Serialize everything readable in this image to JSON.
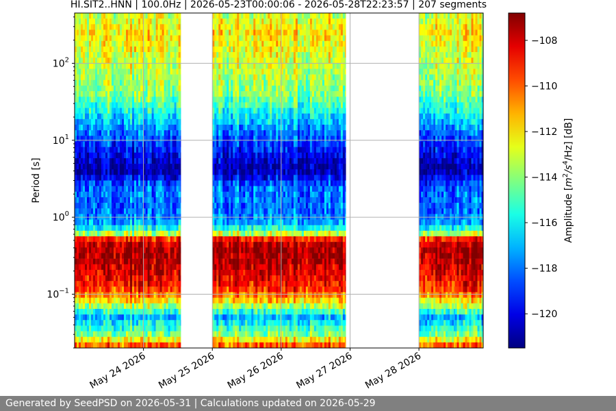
{
  "chart_data": {
    "type": "heatmap",
    "title": "HI.SIT2..HNN | 100.0Hz | 2026-05-23T00:00:06 - 2026-05-28T22:23:57 | 207 segments",
    "ylabel": "Period [s]",
    "y_scale": "log",
    "y_inverted": true,
    "ylim": [
      0.02,
      450
    ],
    "y_ticks": [
      {
        "value": 0.1,
        "base": "10",
        "exp": "−1"
      },
      {
        "value": 1,
        "base": "10",
        "exp": "0"
      },
      {
        "value": 10,
        "base": "10",
        "exp": "1"
      },
      {
        "value": 100,
        "base": "10",
        "exp": "2"
      }
    ],
    "xlim": [
      "2026-05-23T00:00:06",
      "2026-05-28T22:23:57"
    ],
    "x_ticks": [
      "May 24 2026",
      "May 25 2026",
      "May 26 2026",
      "May 27 2026",
      "May 28 2026"
    ],
    "x_tick_dates": [
      "2026-05-24",
      "2026-05-25",
      "2026-05-26",
      "2026-05-27",
      "2026-05-28"
    ],
    "grid": true,
    "colorscale": "jet",
    "colorbar": {
      "label_prefix": "Amplitude [",
      "label_unit": "m",
      "label_sup1": "2",
      "label_mid": "/s",
      "label_sup2": "4",
      "label_suffix": "/Hz] [dB]",
      "range": [
        -121.5,
        -106.8
      ],
      "ticks": [
        "−108",
        "−110",
        "−112",
        "−114",
        "−116",
        "−118",
        "−120"
      ],
      "tick_values": [
        -108,
        -110,
        -112,
        -114,
        -116,
        -118,
        -120
      ]
    },
    "data_intervals": [
      [
        "2026-05-23T00:00:06",
        "2026-05-24T00:00:00"
      ],
      [
        "2026-05-24T00:00:00",
        "2026-05-24T13:00:00"
      ],
      [
        "2026-05-25T00:00:00",
        "2026-05-26T00:00:00"
      ],
      [
        "2026-05-26T00:00:00",
        "2026-05-26T22:30:00"
      ],
      [
        "2026-05-28T00:00:00",
        "2026-05-28T12:30:00"
      ],
      [
        "2026-05-28T12:30:00",
        "2026-05-28T22:23:57"
      ]
    ],
    "amplitude_profile_by_period": [
      {
        "period": 0.02,
        "db": -109
      },
      {
        "period": 0.03,
        "db": -114
      },
      {
        "period": 0.05,
        "db": -117
      },
      {
        "period": 0.08,
        "db": -112
      },
      {
        "period": 0.12,
        "db": -109
      },
      {
        "period": 0.2,
        "db": -108
      },
      {
        "period": 0.35,
        "db": -107
      },
      {
        "period": 0.5,
        "db": -108
      },
      {
        "period": 0.6,
        "db": -113
      },
      {
        "period": 0.8,
        "db": -117
      },
      {
        "period": 1.2,
        "db": -118
      },
      {
        "period": 2.5,
        "db": -118
      },
      {
        "period": 4,
        "db": -121
      },
      {
        "period": 6,
        "db": -120
      },
      {
        "period": 12,
        "db": -118
      },
      {
        "period": 40,
        "db": -114
      },
      {
        "period": 100,
        "db": -113
      },
      {
        "period": 250,
        "db": -112
      },
      {
        "period": 450,
        "db": -113
      }
    ]
  },
  "footer": {
    "text": "Generated by SeedPSD on 2026-05-31 | Calculations updated on 2026-05-29"
  }
}
